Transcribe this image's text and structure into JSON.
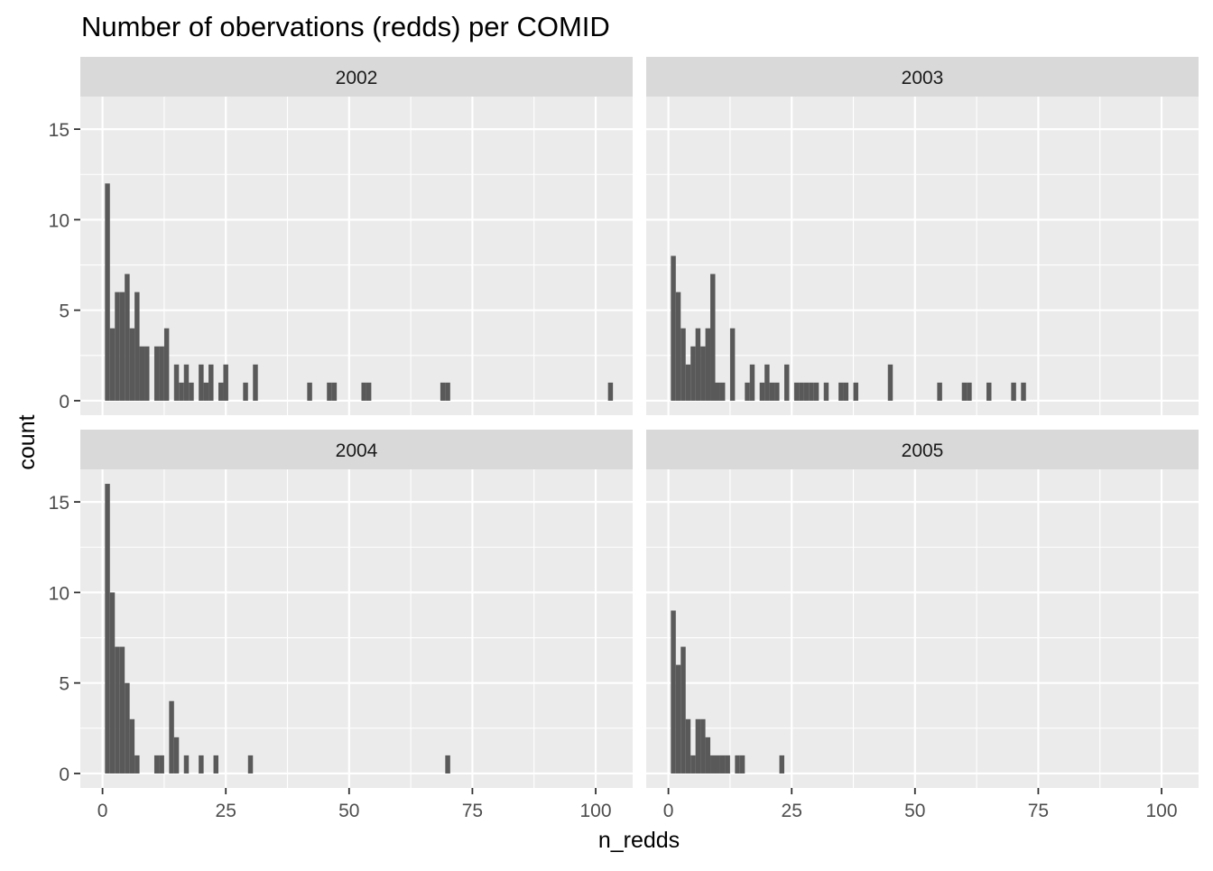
{
  "chart_data": {
    "type": "bar",
    "title": "Number of obervations (redds) per COMID",
    "xlabel": "n_redds",
    "ylabel": "count",
    "xlim": [
      -4.5,
      107.5
    ],
    "ylim": [
      -0.8,
      16.8
    ],
    "x_ticks": [
      0,
      25,
      50,
      75,
      100
    ],
    "x_tick_labels": [
      "0",
      "25",
      "50",
      "75",
      "100"
    ],
    "y_ticks": [
      0,
      5,
      10,
      15
    ],
    "y_tick_labels": [
      "0",
      "5",
      "10",
      "15"
    ],
    "bin_width": 1,
    "grid": true,
    "bar_color": "#595959",
    "panel_bg": "#ebebeb",
    "strip_bg": "#d9d9d9",
    "panels": [
      {
        "label": "2002",
        "bins": [
          {
            "x": 1,
            "count": 12
          },
          {
            "x": 2,
            "count": 4
          },
          {
            "x": 3,
            "count": 6
          },
          {
            "x": 4,
            "count": 6
          },
          {
            "x": 5,
            "count": 7
          },
          {
            "x": 6,
            "count": 4
          },
          {
            "x": 7,
            "count": 6
          },
          {
            "x": 8,
            "count": 3
          },
          {
            "x": 9,
            "count": 3
          },
          {
            "x": 11,
            "count": 3
          },
          {
            "x": 12,
            "count": 3
          },
          {
            "x": 13,
            "count": 4
          },
          {
            "x": 15,
            "count": 2
          },
          {
            "x": 16,
            "count": 1
          },
          {
            "x": 17,
            "count": 2
          },
          {
            "x": 18,
            "count": 1
          },
          {
            "x": 20,
            "count": 2
          },
          {
            "x": 21,
            "count": 1
          },
          {
            "x": 22,
            "count": 2
          },
          {
            "x": 24,
            "count": 1
          },
          {
            "x": 25,
            "count": 2
          },
          {
            "x": 29,
            "count": 1
          },
          {
            "x": 31,
            "count": 2
          },
          {
            "x": 42,
            "count": 1
          },
          {
            "x": 46,
            "count": 1
          },
          {
            "x": 47,
            "count": 1
          },
          {
            "x": 53,
            "count": 1
          },
          {
            "x": 54,
            "count": 1
          },
          {
            "x": 69,
            "count": 1
          },
          {
            "x": 70,
            "count": 1
          },
          {
            "x": 103,
            "count": 1
          }
        ]
      },
      {
        "label": "2003",
        "bins": [
          {
            "x": 1,
            "count": 8
          },
          {
            "x": 2,
            "count": 6
          },
          {
            "x": 3,
            "count": 4
          },
          {
            "x": 4,
            "count": 2
          },
          {
            "x": 5,
            "count": 3
          },
          {
            "x": 6,
            "count": 4
          },
          {
            "x": 7,
            "count": 3
          },
          {
            "x": 8,
            "count": 4
          },
          {
            "x": 9,
            "count": 7
          },
          {
            "x": 10,
            "count": 1
          },
          {
            "x": 11,
            "count": 1
          },
          {
            "x": 13,
            "count": 4
          },
          {
            "x": 16,
            "count": 1
          },
          {
            "x": 17,
            "count": 2
          },
          {
            "x": 19,
            "count": 1
          },
          {
            "x": 20,
            "count": 2
          },
          {
            "x": 21,
            "count": 1
          },
          {
            "x": 22,
            "count": 1
          },
          {
            "x": 24,
            "count": 2
          },
          {
            "x": 26,
            "count": 1
          },
          {
            "x": 27,
            "count": 1
          },
          {
            "x": 28,
            "count": 1
          },
          {
            "x": 29,
            "count": 1
          },
          {
            "x": 30,
            "count": 1
          },
          {
            "x": 32,
            "count": 1
          },
          {
            "x": 35,
            "count": 1
          },
          {
            "x": 36,
            "count": 1
          },
          {
            "x": 38,
            "count": 1
          },
          {
            "x": 45,
            "count": 2
          },
          {
            "x": 55,
            "count": 1
          },
          {
            "x": 60,
            "count": 1
          },
          {
            "x": 61,
            "count": 1
          },
          {
            "x": 65,
            "count": 1
          },
          {
            "x": 70,
            "count": 1
          },
          {
            "x": 72,
            "count": 1
          }
        ]
      },
      {
        "label": "2004",
        "bins": [
          {
            "x": 1,
            "count": 16
          },
          {
            "x": 2,
            "count": 10
          },
          {
            "x": 3,
            "count": 7
          },
          {
            "x": 4,
            "count": 7
          },
          {
            "x": 5,
            "count": 5
          },
          {
            "x": 6,
            "count": 3
          },
          {
            "x": 7,
            "count": 1
          },
          {
            "x": 11,
            "count": 1
          },
          {
            "x": 12,
            "count": 1
          },
          {
            "x": 14,
            "count": 4
          },
          {
            "x": 15,
            "count": 2
          },
          {
            "x": 17,
            "count": 1
          },
          {
            "x": 20,
            "count": 1
          },
          {
            "x": 23,
            "count": 1
          },
          {
            "x": 30,
            "count": 1
          },
          {
            "x": 70,
            "count": 1
          }
        ]
      },
      {
        "label": "2005",
        "bins": [
          {
            "x": 1,
            "count": 9
          },
          {
            "x": 2,
            "count": 6
          },
          {
            "x": 3,
            "count": 7
          },
          {
            "x": 4,
            "count": 3
          },
          {
            "x": 5,
            "count": 1
          },
          {
            "x": 6,
            "count": 3
          },
          {
            "x": 7,
            "count": 3
          },
          {
            "x": 8,
            "count": 2
          },
          {
            "x": 9,
            "count": 1
          },
          {
            "x": 10,
            "count": 1
          },
          {
            "x": 11,
            "count": 1
          },
          {
            "x": 12,
            "count": 1
          },
          {
            "x": 14,
            "count": 1
          },
          {
            "x": 15,
            "count": 1
          },
          {
            "x": 23,
            "count": 1
          }
        ]
      }
    ]
  }
}
